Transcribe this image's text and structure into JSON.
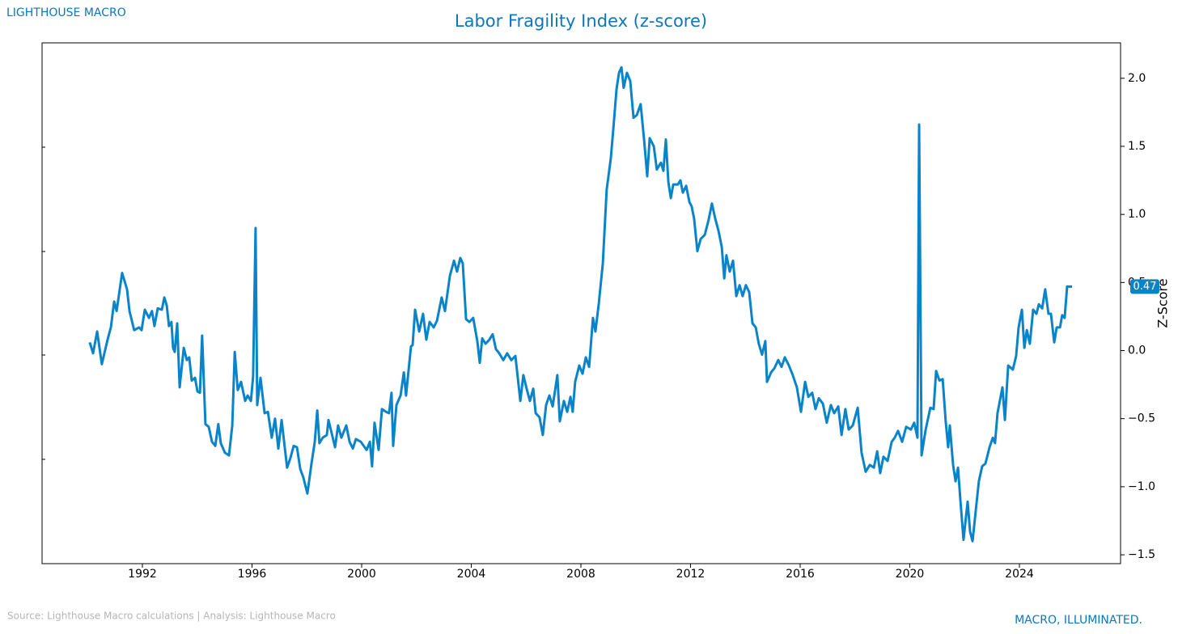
{
  "chart_data": {
    "type": "line",
    "brand": "LIGHTHOUSE MACRO",
    "title": "Labor Fragility Index (z-score)",
    "y_label": "Z-Score",
    "source": "Source: Lighthouse Macro calculations | Analysis: Lighthouse Macro",
    "tagline": "MACRO, ILLUMINATED.",
    "x": [
      1990.08,
      1990.2,
      1990.35,
      1990.52,
      1990.73,
      1990.85,
      1990.97,
      1991.06,
      1991.26,
      1991.44,
      1991.53,
      1991.7,
      1991.88,
      1991.97,
      1992.09,
      1992.24,
      1992.35,
      1992.44,
      1992.56,
      1992.71,
      1992.8,
      1992.89,
      1992.97,
      1993.06,
      1993.12,
      1993.18,
      1993.27,
      1993.36,
      1993.51,
      1993.62,
      1993.71,
      1993.8,
      1993.92,
      1994.01,
      1994.1,
      1994.18,
      1994.3,
      1994.42,
      1994.54,
      1994.66,
      1994.77,
      1994.86,
      1995.01,
      1995.16,
      1995.28,
      1995.37,
      1995.48,
      1995.6,
      1995.75,
      1995.84,
      1995.96,
      1996.04,
      1996.13,
      1996.19,
      1996.31,
      1996.46,
      1996.58,
      1996.72,
      1996.84,
      1996.96,
      1997.08,
      1997.28,
      1997.4,
      1997.52,
      1997.64,
      1997.76,
      1997.87,
      1998.02,
      1998.17,
      1998.29,
      1998.38,
      1998.46,
      1998.58,
      1998.73,
      1998.79,
      1998.91,
      1999.03,
      1999.14,
      1999.26,
      1999.44,
      1999.56,
      1999.68,
      1999.79,
      1999.97,
      2000.18,
      2000.3,
      2000.38,
      2000.47,
      2000.62,
      2000.74,
      2000.89,
      2001.0,
      2001.09,
      2001.15,
      2001.27,
      2001.42,
      2001.54,
      2001.62,
      2001.8,
      2001.86,
      2001.95,
      2002.1,
      2002.24,
      2002.36,
      2002.48,
      2002.63,
      2002.75,
      2002.92,
      2003.04,
      2003.22,
      2003.37,
      2003.48,
      2003.6,
      2003.69,
      2003.81,
      2003.93,
      2004.07,
      2004.22,
      2004.31,
      2004.4,
      2004.52,
      2004.66,
      2004.78,
      2004.9,
      2005.02,
      2005.17,
      2005.31,
      2005.46,
      2005.61,
      2005.79,
      2005.9,
      2006.02,
      2006.14,
      2006.26,
      2006.35,
      2006.49,
      2006.61,
      2006.73,
      2006.85,
      2006.97,
      2007.14,
      2007.23,
      2007.38,
      2007.5,
      2007.62,
      2007.7,
      2007.79,
      2007.94,
      2008.06,
      2008.18,
      2008.3,
      2008.44,
      2008.53,
      2008.65,
      2008.8,
      2008.94,
      2009.09,
      2009.18,
      2009.3,
      2009.39,
      2009.48,
      2009.56,
      2009.68,
      2009.8,
      2009.92,
      2010.04,
      2010.18,
      2010.3,
      2010.42,
      2010.51,
      2010.66,
      2010.77,
      2010.92,
      2011.01,
      2011.1,
      2011.19,
      2011.28,
      2011.37,
      2011.54,
      2011.63,
      2011.72,
      2011.84,
      2011.96,
      2012.04,
      2012.13,
      2012.25,
      2012.37,
      2012.52,
      2012.66,
      2012.78,
      2012.9,
      2013.02,
      2013.14,
      2013.23,
      2013.31,
      2013.43,
      2013.55,
      2013.67,
      2013.79,
      2013.9,
      2014.02,
      2014.14,
      2014.26,
      2014.38,
      2014.49,
      2014.61,
      2014.73,
      2014.79,
      2014.94,
      2015.06,
      2015.2,
      2015.32,
      2015.44,
      2015.59,
      2015.73,
      2015.88,
      2016.03,
      2016.18,
      2016.3,
      2016.44,
      2016.56,
      2016.68,
      2016.83,
      2016.97,
      2017.12,
      2017.24,
      2017.39,
      2017.51,
      2017.65,
      2017.77,
      2017.92,
      2018.1,
      2018.24,
      2018.39,
      2018.54,
      2018.69,
      2018.81,
      2018.92,
      2019.04,
      2019.19,
      2019.34,
      2019.45,
      2019.57,
      2019.72,
      2019.87,
      2020.04,
      2020.16,
      2020.28,
      2020.34,
      2020.43,
      2020.58,
      2020.75,
      2020.87,
      2020.96,
      2021.08,
      2021.2,
      2021.31,
      2021.4,
      2021.46,
      2021.58,
      2021.67,
      2021.76,
      2021.85,
      2021.96,
      2022.11,
      2022.2,
      2022.29,
      2022.41,
      2022.52,
      2022.64,
      2022.76,
      2022.91,
      2023.03,
      2023.11,
      2023.2,
      2023.38,
      2023.47,
      2023.59,
      2023.76,
      2023.88,
      2023.97,
      2024.09,
      2024.18,
      2024.27,
      2024.38,
      2024.5,
      2024.62,
      2024.71,
      2024.83,
      2024.94,
      2025.06,
      2025.15,
      2025.27,
      2025.36,
      2025.48,
      2025.56,
      2025.65,
      2025.74,
      2025.92
    ],
    "series": [
      {
        "name": "Labor Fragility Index",
        "color": "#0a84c9",
        "values": [
          0.06,
          -0.02,
          0.14,
          -0.1,
          0.08,
          0.17,
          0.36,
          0.29,
          0.57,
          0.45,
          0.29,
          0.15,
          0.17,
          0.15,
          0.3,
          0.24,
          0.29,
          0.18,
          0.31,
          0.3,
          0.39,
          0.33,
          0.18,
          0.21,
          0.02,
          -0.01,
          0.2,
          -0.27,
          0.02,
          -0.07,
          -0.05,
          -0.22,
          -0.2,
          -0.3,
          -0.31,
          0.11,
          -0.54,
          -0.56,
          -0.67,
          -0.7,
          -0.54,
          -0.68,
          -0.75,
          -0.77,
          -0.55,
          -0.01,
          -0.29,
          -0.23,
          -0.37,
          -0.33,
          -0.37,
          -0.19,
          0.9,
          -0.4,
          -0.2,
          -0.46,
          -0.45,
          -0.64,
          -0.5,
          -0.72,
          -0.51,
          -0.86,
          -0.79,
          -0.7,
          -0.71,
          -0.87,
          -0.93,
          -1.05,
          -0.83,
          -0.67,
          -0.44,
          -0.68,
          -0.64,
          -0.62,
          -0.51,
          -0.61,
          -0.71,
          -0.55,
          -0.64,
          -0.55,
          -0.67,
          -0.72,
          -0.65,
          -0.67,
          -0.73,
          -0.67,
          -0.85,
          -0.53,
          -0.73,
          -0.43,
          -0.45,
          -0.46,
          -0.31,
          -0.7,
          -0.4,
          -0.33,
          -0.16,
          -0.33,
          0.03,
          0.04,
          0.3,
          0.14,
          0.27,
          0.08,
          0.21,
          0.17,
          0.22,
          0.39,
          0.29,
          0.55,
          0.66,
          0.58,
          0.68,
          0.64,
          0.23,
          0.21,
          0.24,
          0.07,
          -0.09,
          0.09,
          0.05,
          0.08,
          0.12,
          0.01,
          -0.02,
          -0.07,
          -0.02,
          -0.07,
          -0.04,
          -0.37,
          -0.18,
          -0.28,
          -0.37,
          -0.28,
          -0.46,
          -0.49,
          -0.62,
          -0.4,
          -0.33,
          -0.41,
          -0.18,
          -0.52,
          -0.37,
          -0.45,
          -0.34,
          -0.45,
          -0.23,
          -0.11,
          -0.17,
          -0.05,
          -0.12,
          0.24,
          0.14,
          0.34,
          0.64,
          1.18,
          1.41,
          1.62,
          1.92,
          2.04,
          2.08,
          1.93,
          2.04,
          1.98,
          1.71,
          1.73,
          1.81,
          1.56,
          1.28,
          1.56,
          1.5,
          1.33,
          1.38,
          1.32,
          1.55,
          1.24,
          1.12,
          1.22,
          1.22,
          1.25,
          1.16,
          1.21,
          1.09,
          1.06,
          0.97,
          0.73,
          0.82,
          0.85,
          0.96,
          1.08,
          0.97,
          0.88,
          0.76,
          0.53,
          0.7,
          0.58,
          0.66,
          0.4,
          0.48,
          0.4,
          0.48,
          0.43,
          0.2,
          0.17,
          0.05,
          -0.03,
          0.07,
          -0.23,
          -0.16,
          -0.13,
          -0.07,
          -0.12,
          -0.05,
          -0.11,
          -0.18,
          -0.27,
          -0.45,
          -0.23,
          -0.34,
          -0.31,
          -0.43,
          -0.35,
          -0.39,
          -0.53,
          -0.4,
          -0.46,
          -0.41,
          -0.62,
          -0.43,
          -0.58,
          -0.55,
          -0.42,
          -0.75,
          -0.89,
          -0.84,
          -0.86,
          -0.74,
          -0.9,
          -0.78,
          -0.81,
          -0.67,
          -0.64,
          -0.59,
          -0.67,
          -0.56,
          -0.58,
          -0.53,
          -0.64,
          1.66,
          -0.77,
          -0.58,
          -0.42,
          -0.43,
          -0.15,
          -0.22,
          -0.21,
          -0.52,
          -0.71,
          -0.55,
          -0.84,
          -0.96,
          -0.86,
          -1.11,
          -1.39,
          -1.11,
          -1.33,
          -1.4,
          -1.17,
          -0.96,
          -0.85,
          -0.83,
          -0.71,
          -0.64,
          -0.68,
          -0.46,
          -0.27,
          -0.51,
          -0.11,
          -0.14,
          -0.04,
          0.17,
          0.3,
          0.02,
          0.15,
          0.05,
          0.3,
          0.27,
          0.34,
          0.31,
          0.45,
          0.27,
          0.27,
          0.06,
          0.17,
          0.17,
          0.26,
          0.24,
          0.47,
          0.47
        ]
      }
    ],
    "xlim": [
      1988.34,
      2027.69
    ],
    "xticks": [
      1992,
      1996,
      2000,
      2004,
      2008,
      2012,
      2016,
      2020,
      2024
    ],
    "ylim": [
      -1.565,
      2.26
    ],
    "yticks": [
      {
        "value": -1.5,
        "label": "−1.5"
      },
      {
        "value": -1,
        "label": "−1.0"
      },
      {
        "value": -0.5,
        "label": "−0.5"
      },
      {
        "value": 0,
        "label": "0.0"
      },
      {
        "value": 0.5,
        "label": "0.5"
      },
      {
        "value": 1,
        "label": "1.0"
      },
      {
        "value": 1.5,
        "label": "1.5"
      },
      {
        "value": 2,
        "label": "2.0"
      }
    ],
    "y_axis_side": "right",
    "grid": false
  }
}
